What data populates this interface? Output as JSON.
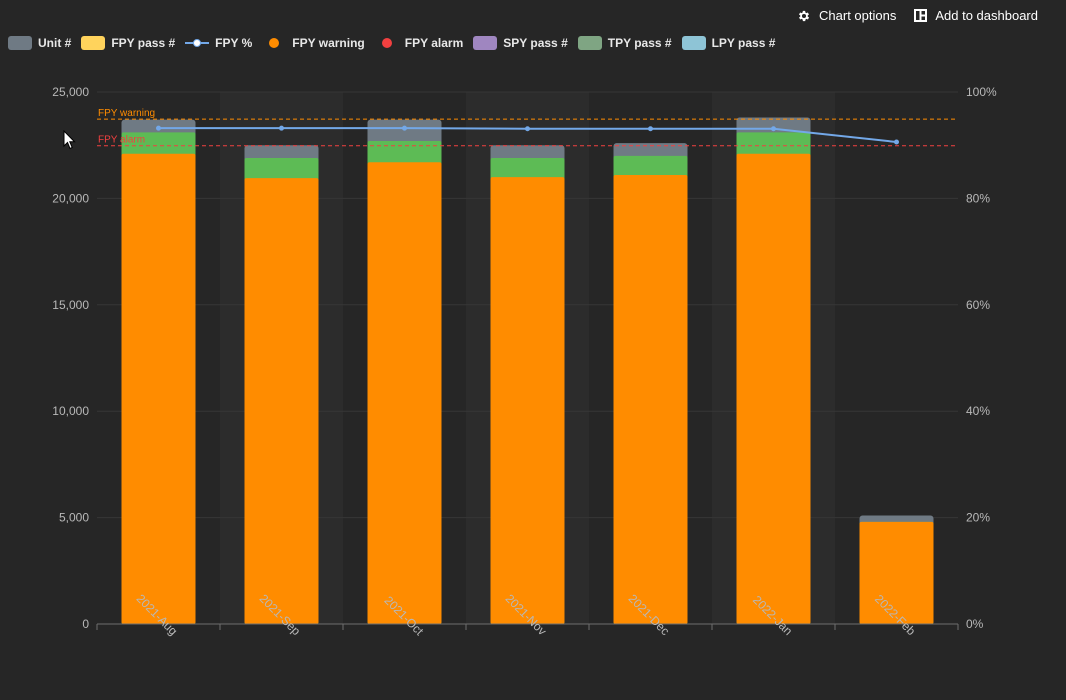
{
  "toolbar": {
    "chart_options_label": "Chart options",
    "add_dashboard_label": "Add to dashboard"
  },
  "legend": [
    {
      "label": "Unit #",
      "kind": "rect",
      "color": "#6f7a84"
    },
    {
      "label": "FPY pass #",
      "kind": "rect",
      "color": "#ffd35c"
    },
    {
      "label": "FPY %",
      "kind": "line",
      "color": "#73a8e8"
    },
    {
      "label": "FPY warning",
      "kind": "dot",
      "color": "#ff8c00"
    },
    {
      "label": "FPY alarm",
      "kind": "dot",
      "color": "#f24040"
    },
    {
      "label": "SPY pass #",
      "kind": "rect",
      "color": "#9f86c0"
    },
    {
      "label": "TPY pass #",
      "kind": "rect",
      "color": "#7fa583"
    },
    {
      "label": "LPY pass #",
      "kind": "rect",
      "color": "#8ec4d6"
    }
  ],
  "chart_data": {
    "type": "bar",
    "categories": [
      "2021-Aug",
      "2021-Sep",
      "2021-Oct",
      "2021-Nov",
      "2021-Dec",
      "2022-Jan",
      "2022-Feb"
    ],
    "y_left": {
      "min": 0,
      "max": 25000,
      "ticks": [
        0,
        5000,
        10000,
        15000,
        20000,
        25000
      ],
      "tick_labels": [
        "0",
        "5,000",
        "10,000",
        "15,000",
        "20,000",
        "25,000"
      ]
    },
    "y_right": {
      "min": 0,
      "max": 100,
      "ticks": [
        0,
        20,
        40,
        60,
        80,
        100
      ],
      "tick_labels": [
        "0%",
        "20%",
        "40%",
        "60%",
        "80%",
        "100%"
      ]
    },
    "series": [
      {
        "name": "Unit #",
        "color": "#6f7a84",
        "values": [
          23700,
          22500,
          23700,
          22500,
          22600,
          23800,
          5100
        ]
      },
      {
        "name": "FPY pass #",
        "color": "#ff8c00",
        "values": [
          22100,
          20950,
          21700,
          21000,
          21100,
          22100,
          4800
        ]
      },
      {
        "name": "SPY pass #",
        "color": "#5dbb55",
        "values": [
          23100,
          21900,
          22700,
          21900,
          22000,
          23100,
          4800
        ]
      },
      {
        "name": "FPY %",
        "color": "#73a8e8",
        "type": "line",
        "values": [
          93.2,
          93.2,
          93.2,
          93.1,
          93.1,
          93.1,
          90.6
        ]
      }
    ],
    "thresholds": [
      {
        "label": "FPY warning",
        "value": 94.9,
        "color": "#ff8c00"
      },
      {
        "label": "FPY alarm",
        "value": 89.9,
        "color": "#f24040"
      }
    ],
    "grid": true,
    "legend_position": "top-left"
  }
}
